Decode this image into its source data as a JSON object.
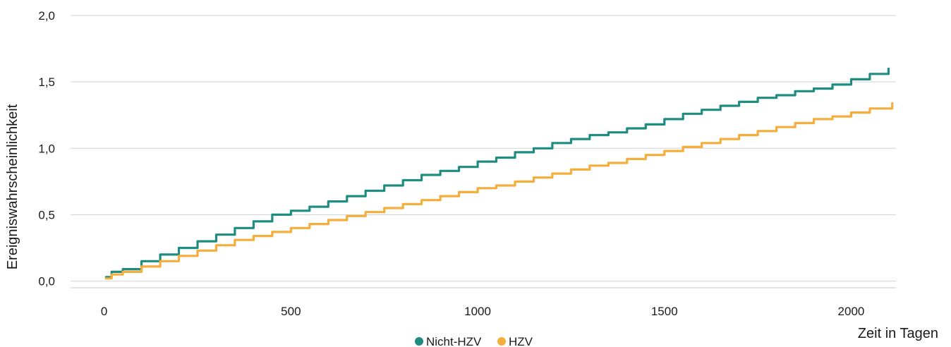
{
  "chart_data": {
    "type": "line",
    "xlabel": "Zeit in Tagen",
    "ylabel": "Ereigniswahrscheinlichkeit",
    "xlim": [
      -90,
      2120
    ],
    "ylim": [
      -0.05,
      2.0
    ],
    "x_ticks": [
      0,
      500,
      1000,
      1500,
      2000
    ],
    "x_tick_labels": [
      "0",
      "500",
      "1000",
      "1500",
      "2000"
    ],
    "y_ticks": [
      0.0,
      0.5,
      1.0,
      1.5,
      2.0
    ],
    "y_tick_labels": [
      "0,0",
      "0,5",
      "1,0",
      "1,5",
      "2,0"
    ],
    "grid": "horizontal",
    "legend_position": "bottom-center",
    "series": [
      {
        "name": "Nicht-HZV",
        "color": "#1e8c80",
        "x": [
          5,
          20,
          50,
          100,
          150,
          200,
          250,
          300,
          350,
          400,
          450,
          500,
          550,
          600,
          650,
          700,
          750,
          800,
          850,
          900,
          950,
          1000,
          1050,
          1100,
          1150,
          1200,
          1250,
          1300,
          1350,
          1400,
          1450,
          1500,
          1550,
          1600,
          1650,
          1700,
          1750,
          1800,
          1850,
          1900,
          1950,
          2000,
          2050,
          2100
        ],
        "y": [
          0.03,
          0.07,
          0.09,
          0.15,
          0.2,
          0.25,
          0.3,
          0.35,
          0.4,
          0.45,
          0.5,
          0.53,
          0.56,
          0.6,
          0.64,
          0.68,
          0.72,
          0.76,
          0.8,
          0.83,
          0.86,
          0.9,
          0.93,
          0.97,
          1.0,
          1.04,
          1.07,
          1.1,
          1.12,
          1.15,
          1.18,
          1.22,
          1.26,
          1.29,
          1.32,
          1.35,
          1.38,
          1.4,
          1.43,
          1.45,
          1.48,
          1.52,
          1.56,
          1.6
        ]
      },
      {
        "name": "HZV",
        "color": "#f5ad3c",
        "x": [
          5,
          20,
          50,
          100,
          150,
          200,
          250,
          300,
          350,
          400,
          450,
          500,
          550,
          600,
          650,
          700,
          750,
          800,
          850,
          900,
          950,
          1000,
          1050,
          1100,
          1150,
          1200,
          1250,
          1300,
          1350,
          1400,
          1450,
          1500,
          1550,
          1600,
          1650,
          1700,
          1750,
          1800,
          1850,
          1900,
          1950,
          2000,
          2050,
          2110
        ],
        "y": [
          0.02,
          0.05,
          0.07,
          0.11,
          0.15,
          0.19,
          0.23,
          0.27,
          0.31,
          0.34,
          0.37,
          0.4,
          0.43,
          0.46,
          0.49,
          0.52,
          0.55,
          0.58,
          0.61,
          0.64,
          0.67,
          0.7,
          0.72,
          0.75,
          0.78,
          0.81,
          0.84,
          0.87,
          0.89,
          0.92,
          0.95,
          0.98,
          1.01,
          1.04,
          1.07,
          1.1,
          1.13,
          1.16,
          1.19,
          1.22,
          1.24,
          1.27,
          1.3,
          1.34
        ]
      }
    ]
  }
}
